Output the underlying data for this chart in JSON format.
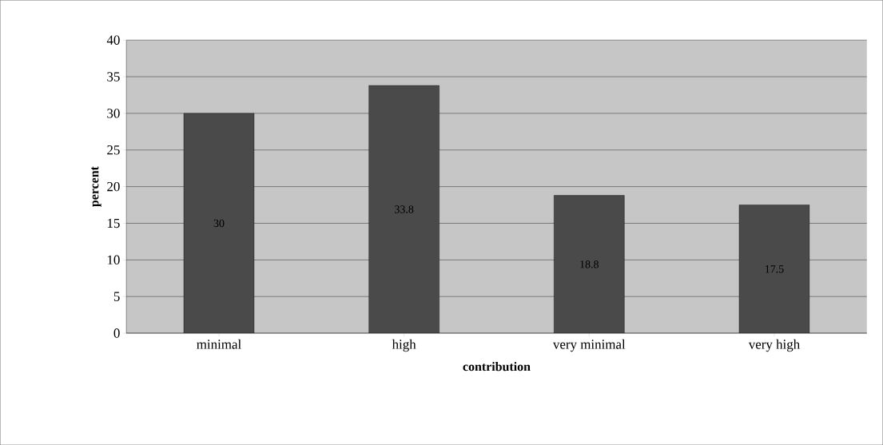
{
  "chart_data": {
    "type": "bar",
    "xlabel": "contribution",
    "ylabel": "percent",
    "categories": [
      "minimal",
      "high",
      "very minimal",
      "very high"
    ],
    "values": [
      30,
      33.8,
      18.8,
      17.5
    ],
    "color": "#4a4a4a",
    "ylim": [
      0,
      40
    ],
    "yticks": [
      0,
      5,
      10,
      15,
      20,
      25,
      30,
      35,
      40
    ],
    "grid": "y",
    "data_labels": true
  }
}
